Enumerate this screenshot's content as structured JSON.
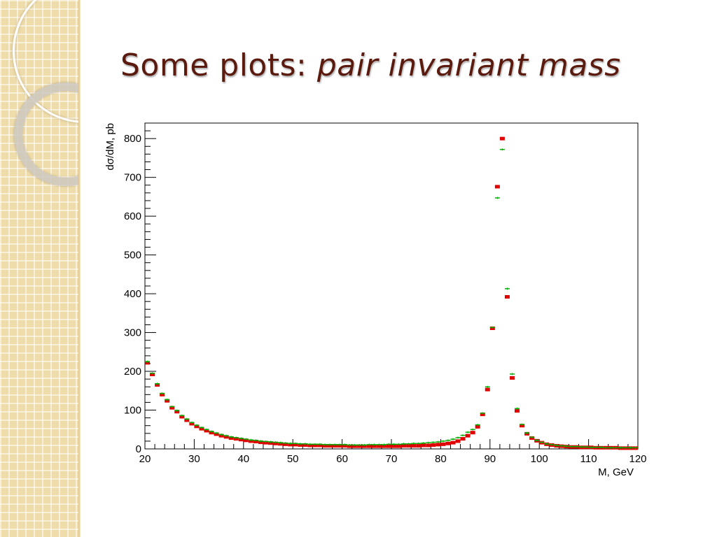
{
  "slide": {
    "title_main": "Some plots: ",
    "title_italic": "pair invariant mass"
  },
  "chart_data": {
    "type": "scatter",
    "title": "",
    "xlabel": "M, GeV",
    "ylabel": "dσ/dM, pb",
    "xlim": [
      20,
      120
    ],
    "ylim": [
      0,
      840
    ],
    "xticks": [
      20,
      30,
      40,
      50,
      60,
      70,
      80,
      90,
      100,
      110,
      120
    ],
    "yticks": [
      0,
      100,
      200,
      300,
      400,
      500,
      600,
      700,
      800
    ],
    "grid": false,
    "legend": "none",
    "series": [
      {
        "color": "#e00000",
        "x": [
          20.5,
          21.5,
          22.5,
          23.5,
          24.5,
          25.5,
          26.5,
          27.5,
          28.5,
          29.5,
          30.5,
          31.5,
          32.5,
          33.5,
          34.5,
          35.5,
          36.5,
          37.5,
          38.5,
          39.5,
          40.5,
          41.5,
          42.5,
          43.5,
          44.5,
          45.5,
          46.5,
          47.5,
          48.5,
          49.5,
          50.5,
          51.5,
          52.5,
          53.5,
          54.5,
          55.5,
          56.5,
          57.5,
          58.5,
          59.5,
          60.5,
          61.5,
          62.5,
          63.5,
          64.5,
          65.5,
          66.5,
          67.5,
          68.5,
          69.5,
          70.5,
          71.5,
          72.5,
          73.5,
          74.5,
          75.5,
          76.5,
          77.5,
          78.5,
          79.5,
          80.5,
          81.5,
          82.5,
          83.5,
          84.5,
          85.5,
          86.5,
          87.5,
          88.5,
          89.5,
          90.5,
          91.5,
          92.5,
          93.5,
          94.5,
          95.5,
          96.5,
          97.5,
          98.5,
          99.5,
          100.5,
          101.5,
          102.5,
          103.5,
          104.5,
          105.5,
          106.5,
          107.5,
          108.5,
          109.5,
          110.5,
          111.5,
          112.5,
          113.5,
          114.5,
          115.5,
          116.5,
          117.5,
          118.5,
          119.5
        ],
        "y": [
          222,
          192,
          165,
          140,
          124,
          106,
          96,
          83,
          74,
          65,
          58,
          52,
          47,
          42,
          38,
          34,
          31,
          28,
          26,
          24,
          22,
          20,
          19,
          17,
          16,
          15,
          14,
          13,
          12,
          11,
          11,
          10,
          10,
          9,
          9,
          9,
          8,
          8,
          8,
          8,
          8,
          7,
          7,
          7,
          7,
          7,
          7,
          7,
          7,
          7,
          7,
          7,
          8,
          8,
          8,
          8,
          9,
          9,
          10,
          11,
          12,
          14,
          16,
          20,
          26,
          34,
          42,
          57,
          89,
          153,
          311,
          676,
          800,
          392,
          183,
          98,
          60,
          39,
          28,
          21,
          16,
          12,
          10,
          8,
          7,
          6,
          5,
          5,
          4,
          4,
          4,
          3,
          3,
          3,
          3,
          3,
          2,
          2,
          2,
          2
        ]
      },
      {
        "color": "#00b000",
        "x": [
          20.5,
          21.5,
          22.5,
          23.5,
          24.5,
          25.5,
          26.5,
          27.5,
          28.5,
          29.5,
          30.5,
          31.5,
          32.5,
          33.5,
          34.5,
          35.5,
          36.5,
          37.5,
          38.5,
          39.5,
          40.5,
          41.5,
          42.5,
          43.5,
          44.5,
          45.5,
          46.5,
          47.5,
          48.5,
          49.5,
          50.5,
          51.5,
          52.5,
          53.5,
          54.5,
          55.5,
          56.5,
          57.5,
          58.5,
          59.5,
          60.5,
          61.5,
          62.5,
          63.5,
          64.5,
          65.5,
          66.5,
          67.5,
          68.5,
          69.5,
          70.5,
          71.5,
          72.5,
          73.5,
          74.5,
          75.5,
          76.5,
          77.5,
          78.5,
          79.5,
          80.5,
          81.5,
          82.5,
          83.5,
          84.5,
          85.5,
          86.5,
          87.5,
          88.5,
          89.5,
          90.5,
          91.5,
          92.5,
          93.5,
          94.5,
          95.5,
          96.5,
          97.5,
          98.5,
          99.5,
          100.5,
          101.5,
          102.5,
          103.5,
          104.5,
          105.5,
          106.5,
          107.5,
          108.5,
          109.5,
          110.5,
          111.5,
          112.5,
          113.5,
          114.5,
          115.5,
          116.5,
          117.5,
          118.5,
          119.5
        ],
        "y": [
          225,
          195,
          168,
          143,
          127,
          109,
          99,
          86,
          77,
          68,
          61,
          55,
          50,
          45,
          41,
          37,
          34,
          31,
          29,
          27,
          25,
          23,
          22,
          20,
          19,
          18,
          17,
          16,
          15,
          14,
          14,
          13,
          13,
          12,
          12,
          12,
          11,
          11,
          11,
          11,
          11,
          10,
          10,
          10,
          10,
          11,
          11,
          11,
          11,
          12,
          12,
          12,
          13,
          13,
          14,
          14,
          15,
          16,
          17,
          18,
          20,
          22,
          25,
          29,
          35,
          43,
          50,
          62,
          92,
          160,
          313,
          647,
          772,
          413,
          193,
          104,
          63,
          41,
          30,
          22,
          17,
          13,
          11,
          9,
          8,
          7,
          6,
          6,
          5,
          5,
          4,
          4,
          4,
          3,
          3,
          3,
          3,
          3,
          3,
          3
        ]
      }
    ]
  }
}
